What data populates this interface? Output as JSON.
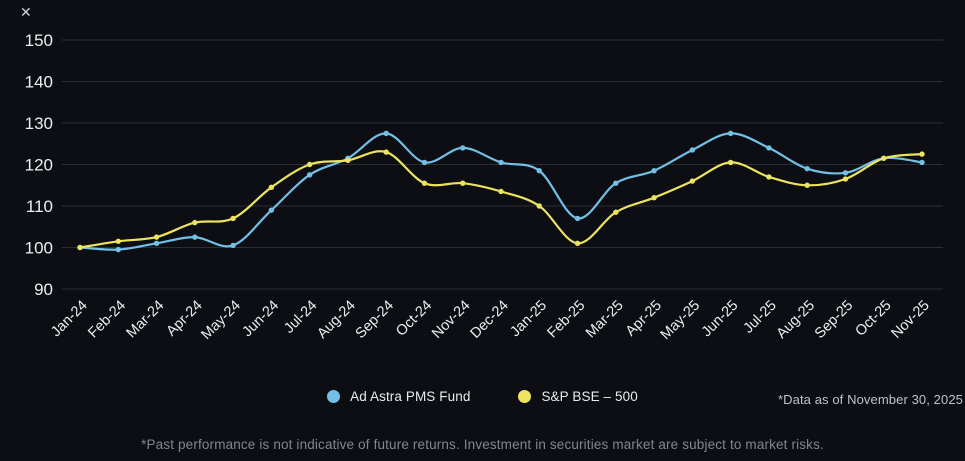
{
  "icons": {
    "close": "✕"
  },
  "chart_data": {
    "type": "line",
    "title": "",
    "categories": [
      "Jan-24",
      "Feb-24",
      "Mar-24",
      "Apr-24",
      "May-24",
      "Jun-24",
      "Jul-24",
      "Aug-24",
      "Sep-24",
      "Oct-24",
      "Nov-24",
      "Dec-24",
      "Jan-25",
      "Feb-25",
      "Mar-25",
      "Apr-25",
      "May-25",
      "Jun-25",
      "Jul-25",
      "Aug-25",
      "Sep-25",
      "Oct-25",
      "Nov-25"
    ],
    "series": [
      {
        "name": "Ad Astra PMS Fund",
        "color": "#73c0e7",
        "values": [
          100,
          99.5,
          101,
          102.5,
          100.5,
          109,
          117.5,
          121.5,
          127.5,
          120.5,
          124,
          120.5,
          118.5,
          107,
          115.5,
          118.5,
          123.5,
          127.5,
          124,
          119,
          118,
          121.5,
          120.5
        ]
      },
      {
        "name": "S&P BSE – 500",
        "color": "#ede35f",
        "values": [
          100,
          101.5,
          102.5,
          106,
          107,
          114.5,
          120,
          121,
          123,
          115.5,
          115.5,
          113.5,
          110,
          101,
          108.5,
          112,
          116,
          120.5,
          117,
          115,
          116.5,
          121.5,
          122.5
        ]
      }
    ],
    "ylim": [
      90,
      150
    ],
    "yticks": [
      90,
      100,
      110,
      120,
      130,
      140,
      150
    ],
    "xlabel": "",
    "ylabel": "",
    "grid": "horizontal",
    "legend_position": "bottom-center"
  },
  "annotations": {
    "data_as_of": "*Data as of November 30, 2025"
  },
  "footer": {
    "disclaimer": "*Past performance is not indicative of future returns. Investment in securities market are subject to market risks."
  },
  "colors": {
    "background": "#0c0e13",
    "gridline": "#2b2e35",
    "axis_label": "#eceef1",
    "note_text": "#bfc2c8",
    "disclaimer_text": "#82868e"
  }
}
